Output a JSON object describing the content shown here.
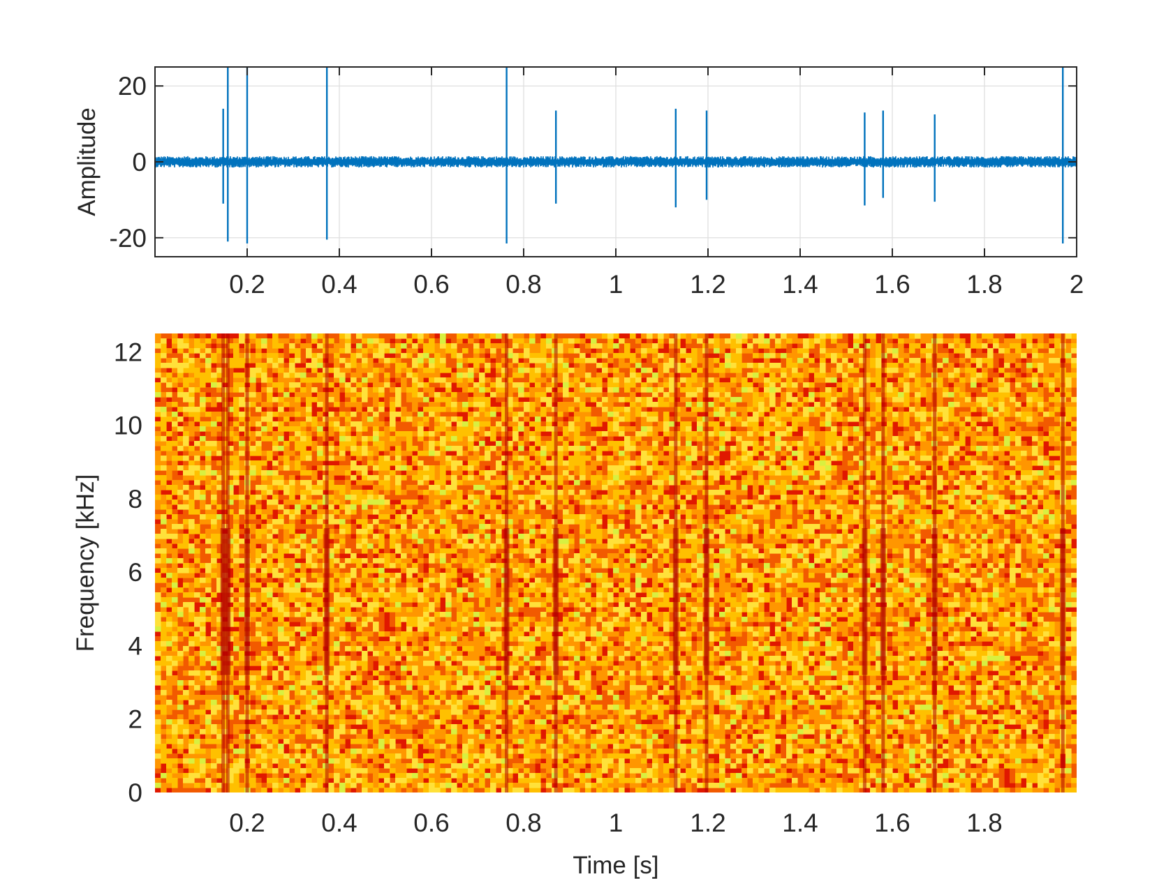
{
  "chart_data": [
    {
      "type": "line",
      "xlabel": "",
      "ylabel": "Amplitude",
      "xlim": [
        0,
        2
      ],
      "ylim": [
        -25,
        25
      ],
      "xticks": [
        0.2,
        0.4,
        0.6,
        0.8,
        1,
        1.2,
        1.4,
        1.6,
        1.8,
        2
      ],
      "xtick_labels": [
        "0.2",
        "0.4",
        "0.6",
        "0.8",
        "1",
        "1.2",
        "1.4",
        "1.6",
        "1.8",
        "2"
      ],
      "yticks": [
        -20,
        0,
        20
      ],
      "ytick_labels": [
        "-20",
        "0",
        "20"
      ],
      "grid": true,
      "color": "#0072BD",
      "baseline_noise_amplitude": 1.5,
      "spikes": [
        {
          "t": 0.148,
          "max": 14,
          "min": -11
        },
        {
          "t": 0.158,
          "max": 25,
          "min": -21
        },
        {
          "t": 0.2,
          "max": 25,
          "min": -21.5
        },
        {
          "t": 0.373,
          "max": 25,
          "min": -20.5
        },
        {
          "t": 0.763,
          "max": 25,
          "min": -21.5
        },
        {
          "t": 0.87,
          "max": 13.5,
          "min": -11
        },
        {
          "t": 1.13,
          "max": 14,
          "min": -12
        },
        {
          "t": 1.197,
          "max": 13.5,
          "min": -10
        },
        {
          "t": 1.54,
          "max": 13,
          "min": -11.5
        },
        {
          "t": 1.58,
          "max": 13.5,
          "min": -9.5
        },
        {
          "t": 1.692,
          "max": 12.5,
          "min": -10.5
        },
        {
          "t": 1.97,
          "max": 25,
          "min": -21.5
        }
      ]
    },
    {
      "type": "heatmap",
      "xlabel": "Time [s]",
      "ylabel": "Frequency [kHz]",
      "xlim": [
        0,
        2
      ],
      "ylim": [
        0,
        12.5
      ],
      "xticks": [
        0.2,
        0.4,
        0.6,
        0.8,
        1,
        1.2,
        1.4,
        1.6,
        1.8
      ],
      "xtick_labels": [
        "0.2",
        "0.4",
        "0.6",
        "0.8",
        "1",
        "1.2",
        "1.4",
        "1.6",
        "1.8"
      ],
      "yticks": [
        0,
        2,
        4,
        6,
        8,
        10,
        12
      ],
      "ytick_labels": [
        "0",
        "2",
        "4",
        "6",
        "8",
        "10",
        "12"
      ],
      "colormap": [
        "#E01800",
        "#F25A00",
        "#FF9600",
        "#FFC000",
        "#FFE13A",
        "#D8F040"
      ],
      "event_times": [
        0.148,
        0.158,
        0.2,
        0.373,
        0.763,
        0.87,
        1.13,
        1.197,
        1.54,
        1.58,
        1.692,
        1.97
      ],
      "event_color": "#B00000"
    }
  ]
}
